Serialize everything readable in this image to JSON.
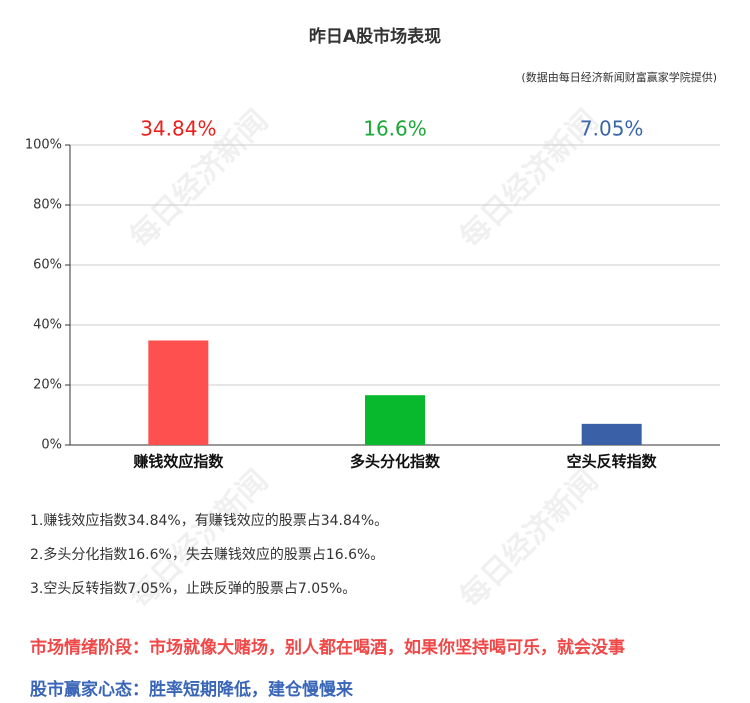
{
  "chart_data": {
    "type": "bar",
    "title": "昨日A股市场表现",
    "subtitle": "(数据由每日经济新闻财富赢家学院提供)",
    "watermark": "每日经济新闻",
    "categories": [
      "赚钱效应指数",
      "多头分化指数",
      "空头反转指数"
    ],
    "values": [
      34.84,
      16.6,
      7.05
    ],
    "value_labels": [
      "34.84%",
      "16.6%",
      "7.05%"
    ],
    "colors": [
      "#ff5050",
      "#09b92d",
      "#3a60a8"
    ],
    "label_colors": [
      "#e8211d",
      "#1aa836",
      "#3a66a8"
    ],
    "ylim": [
      0,
      100
    ],
    "yticks": [
      {
        "value": 0,
        "label": "0%"
      },
      {
        "value": 20,
        "label": "20%"
      },
      {
        "value": 40,
        "label": "40%"
      },
      {
        "value": 60,
        "label": "60%"
      },
      {
        "value": 80,
        "label": "80%"
      },
      {
        "value": 100,
        "label": "100%"
      }
    ],
    "grid": true
  },
  "notes": [
    "1.赚钱效应指数34.84%，有赚钱效应的股票占34.84%。",
    "2.多头分化指数16.6%，失去赚钱效应的股票占16.6%。",
    "3.空头反转指数7.05%，止跌反弹的股票占7.05%。"
  ],
  "sentiment": "市场情绪阶段：市场就像大赌场，别人都在喝酒，如果你坚持喝可乐，就会没事",
  "mindset": "股市赢家心态：胜率短期降低，建仓慢慢来"
}
